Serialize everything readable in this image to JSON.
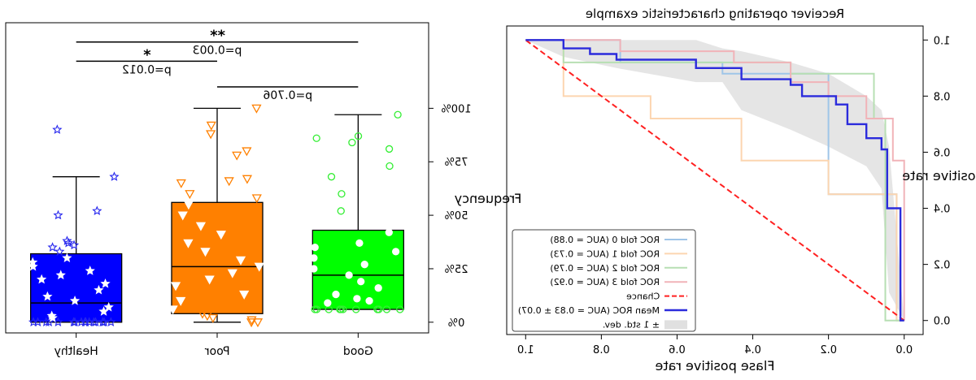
{
  "chart_data": [
    {
      "type": "box",
      "panel": "left",
      "ylabel": "Frequency",
      "categories": [
        "Healthy",
        "Poor",
        "Good"
      ],
      "yticks": [
        "0%",
        "25%",
        "50%",
        "75%",
        "100%"
      ],
      "ylim": [
        -0.05,
        1.4
      ],
      "boxes": [
        {
          "category": "Healthy",
          "color": "#0000ff",
          "marker": "star",
          "marker_color": "#2626ee",
          "q1": 0.0,
          "median": 0.09,
          "q3": 0.32,
          "whisker_low": 0.0,
          "whisker_high": 0.68,
          "points": [
            0.0,
            0.0,
            0.0,
            0.0,
            0.0,
            0.0,
            0.0,
            0.0,
            0.0,
            0.0,
            0.0,
            0.0,
            0.0,
            0.0,
            0.0,
            0.0,
            0.0,
            0.02,
            0.03,
            0.05,
            0.07,
            0.1,
            0.12,
            0.15,
            0.18,
            0.2,
            0.22,
            0.24,
            0.26,
            0.28,
            0.3,
            0.33,
            0.35,
            0.36,
            0.37,
            0.38,
            0.5,
            0.52,
            0.68,
            0.9
          ]
        },
        {
          "category": "Poor",
          "color": "#ff8000",
          "marker": "triangle-down",
          "marker_color": "#ff8000",
          "q1": 0.04,
          "median": 0.26,
          "q3": 0.56,
          "whisker_low": 0.0,
          "whisker_high": 1.0,
          "points": [
            0.0,
            0.0,
            0.01,
            0.02,
            0.03,
            0.04,
            0.06,
            0.1,
            0.13,
            0.17,
            0.2,
            0.23,
            0.26,
            0.29,
            0.33,
            0.37,
            0.41,
            0.45,
            0.5,
            0.55,
            0.58,
            0.6,
            0.65,
            0.66,
            0.67,
            0.78,
            0.8,
            0.88,
            0.92,
            1.0
          ]
        },
        {
          "category": "Good",
          "color": "#00ff00",
          "marker": "circle",
          "marker_color": "#33ee33",
          "q1": 0.06,
          "median": 0.22,
          "q3": 0.43,
          "whisker_low": 0.06,
          "whisker_high": 0.97,
          "points": [
            0.06,
            0.06,
            0.06,
            0.06,
            0.06,
            0.06,
            0.06,
            0.06,
            0.06,
            0.06,
            0.06,
            0.09,
            0.1,
            0.11,
            0.13,
            0.16,
            0.19,
            0.22,
            0.25,
            0.27,
            0.3,
            0.33,
            0.35,
            0.37,
            0.42,
            0.52,
            0.6,
            0.68,
            0.73,
            0.81,
            0.84,
            0.86,
            0.87,
            0.97
          ]
        }
      ],
      "annotations": [
        {
          "from": "Poor",
          "to": "Good",
          "y": 1.1,
          "label": "p=0.706",
          "star": ""
        },
        {
          "from": "Healthy",
          "to": "Poor",
          "y": 1.22,
          "label": "p=0.012",
          "star": "*"
        },
        {
          "from": "Healthy",
          "to": "Good",
          "y": 1.31,
          "label": "p=0.003",
          "star": "**"
        }
      ]
    },
    {
      "type": "line",
      "panel": "right",
      "title": "Receiver operating characteristic example",
      "xlabel": "Flase positive rate",
      "ylabel": "True positive rate",
      "xlim": [
        -0.05,
        1.05
      ],
      "ylim": [
        -0.05,
        1.05
      ],
      "xticks": [
        "0.0",
        "0.2",
        "0.4",
        "0.6",
        "0.8",
        "1.0"
      ],
      "yticks": [
        "0.0",
        "0.2",
        "0.4",
        "0.6",
        "0.8",
        "1.0"
      ],
      "series": [
        {
          "name": "ROC fold 0 (AUC = 0.88)",
          "color": "#9fc5e8",
          "x": [
            0,
            0.02,
            0.02,
            0.2,
            0.2,
            0.48,
            0.48,
            0.75,
            0.75,
            1.0
          ],
          "y": [
            0,
            0,
            0.45,
            0.45,
            0.88,
            0.88,
            0.92,
            0.92,
            1.0,
            1.0
          ]
        },
        {
          "name": "ROC fold 1 (AUC = 0.73)",
          "color": "#fcd5b0",
          "x": [
            0,
            0.02,
            0.02,
            0.2,
            0.2,
            0.43,
            0.43,
            0.67,
            0.67,
            0.9,
            0.9,
            1.0
          ],
          "y": [
            0,
            0,
            0.45,
            0.45,
            0.57,
            0.57,
            0.72,
            0.72,
            0.8,
            0.8,
            1.0,
            1.0
          ]
        },
        {
          "name": "ROC fold 2 (AUC = 0.79)",
          "color": "#b7dfb3",
          "x": [
            0,
            0.05,
            0.05,
            0.08,
            0.08,
            0.3,
            0.3,
            0.9,
            0.9,
            1.0
          ],
          "y": [
            0,
            0,
            0.72,
            0.72,
            0.88,
            0.88,
            0.92,
            0.92,
            1.0,
            1.0
          ]
        },
        {
          "name": "ROC fold 3 (AUC = 0.92)",
          "color": "#f1b3b8",
          "x": [
            0,
            0,
            0.03,
            0.03,
            0.1,
            0.1,
            0.2,
            0.2,
            0.3,
            0.3,
            0.45,
            0.45,
            0.75,
            0.75,
            1.0
          ],
          "y": [
            0,
            0.57,
            0.57,
            0.72,
            0.72,
            0.8,
            0.8,
            0.85,
            0.85,
            0.92,
            0.92,
            0.96,
            0.96,
            1.0,
            1.0
          ]
        },
        {
          "name": "Chance",
          "color": "#ff2020",
          "dashed": true,
          "x": [
            0,
            1
          ],
          "y": [
            0,
            1
          ]
        },
        {
          "name": "Mean ROC (AUC = 0.83 ± 0.07)",
          "color": "#2b2bdc",
          "x": [
            0,
            0.01,
            0.01,
            0.045,
            0.045,
            0.06,
            0.06,
            0.1,
            0.1,
            0.15,
            0.15,
            0.18,
            0.18,
            0.27,
            0.27,
            0.3,
            0.3,
            0.43,
            0.43,
            0.48,
            0.48,
            0.55,
            0.55,
            0.76,
            0.76,
            0.83,
            0.83,
            0.9,
            0.9,
            1.0
          ],
          "y": [
            0,
            0,
            0.4,
            0.4,
            0.61,
            0.61,
            0.65,
            0.65,
            0.7,
            0.7,
            0.77,
            0.77,
            0.8,
            0.8,
            0.84,
            0.84,
            0.86,
            0.86,
            0.9,
            0.9,
            0.9,
            0.9,
            0.93,
            0.93,
            0.95,
            0.95,
            0.97,
            0.97,
            1.0,
            1.0
          ]
        }
      ],
      "band": {
        "name": "± 1 std. dev.",
        "color": "#e0e0e0",
        "x": [
          0,
          0.04,
          0.06,
          0.1,
          0.2,
          0.3,
          0.43,
          0.48,
          0.55,
          0.76,
          0.9,
          1.0
        ],
        "lower": [
          0,
          0.1,
          0.47,
          0.55,
          0.62,
          0.68,
          0.75,
          0.85,
          0.85,
          0.9,
          0.94,
          1.0
        ],
        "upper": [
          0,
          0.62,
          0.75,
          0.8,
          0.88,
          0.92,
          0.96,
          0.97,
          1.0,
          1.0,
          1.0,
          1.0
        ]
      },
      "legend_position": "lower-left"
    }
  ]
}
